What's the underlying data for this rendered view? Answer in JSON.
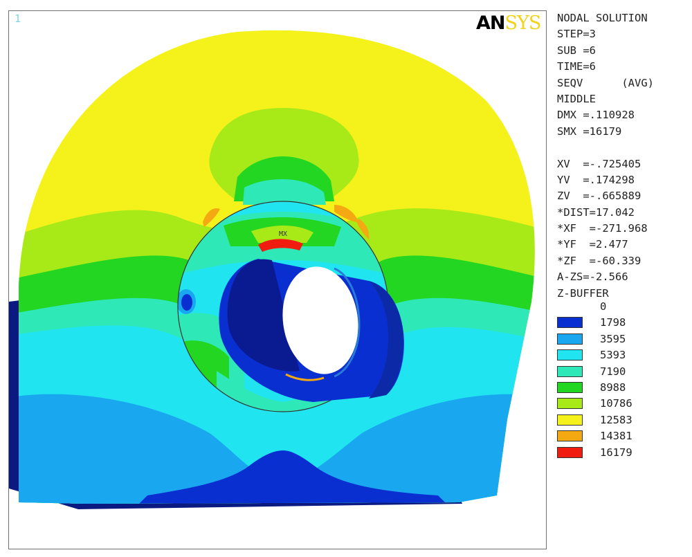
{
  "window": {
    "number": "1",
    "logo_bold": "AN",
    "logo_light": "SYS"
  },
  "plot": {
    "max_marker": "MX"
  },
  "info_lines": [
    "NODAL SOLUTION",
    "STEP=3",
    "SUB =6",
    "TIME=6",
    "SEQV      (AVG)",
    "MIDDLE",
    "DMX =.110928",
    "SMX =16179",
    "",
    "XV  =-.725405",
    "YV  =.174298",
    "ZV  =-.665889",
    "*DIST=17.042",
    "*XF  =-271.968",
    "*YF  =2.477",
    "*ZF  =-60.339",
    "A-ZS=-2.566",
    "Z-BUFFER"
  ],
  "legend": {
    "min_label": "0",
    "levels": [
      {
        "label": "1798",
        "color": "#0a2fd0"
      },
      {
        "label": "3595",
        "color": "#19a8f0"
      },
      {
        "label": "5393",
        "color": "#20e4f0"
      },
      {
        "label": "7190",
        "color": "#2fe8b8"
      },
      {
        "label": "8988",
        "color": "#22d622"
      },
      {
        "label": "10786",
        "color": "#a8ea18"
      },
      {
        "label": "12583",
        "color": "#f4f21a"
      },
      {
        "label": "14381",
        "color": "#f4a812"
      },
      {
        "label": "16179",
        "color": "#f01c10"
      }
    ]
  }
}
